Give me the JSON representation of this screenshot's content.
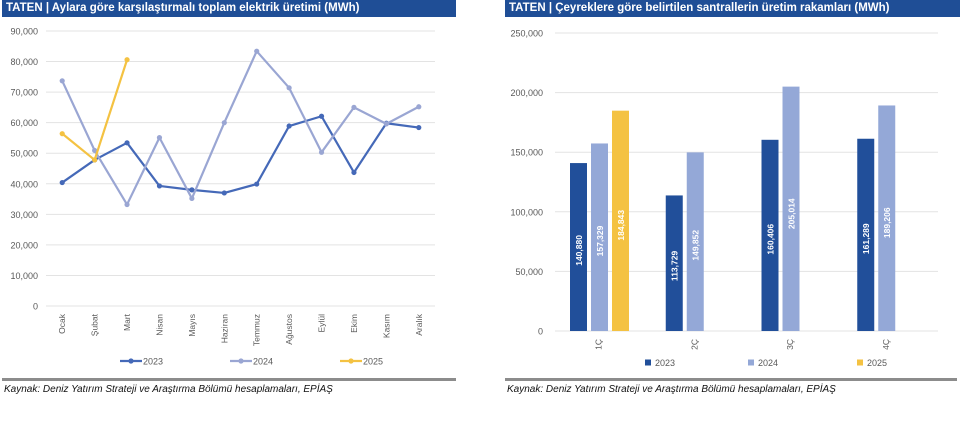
{
  "chart_data": [
    {
      "type": "line",
      "title": "TATEN | Aylara göre karşılaştırmalı toplam elektrik üretimi (MWh)",
      "xlabel": "",
      "ylabel": "",
      "categories": [
        "Ocak",
        "Şubat",
        "Mart",
        "Nisan",
        "Mayıs",
        "Haziran",
        "Temmuz",
        "Ağustos",
        "Eylül",
        "Ekim",
        "Kasım",
        "Aralık"
      ],
      "series": [
        {
          "name": "2023",
          "color": "#4569b8",
          "values": [
            40400,
            47800,
            53400,
            39300,
            38000,
            37000,
            39900,
            58900,
            62100,
            43700,
            59800,
            58400
          ]
        },
        {
          "name": "2024",
          "color": "#9aa6d3",
          "values": [
            73700,
            50900,
            33200,
            55100,
            35200,
            60000,
            83400,
            71400,
            50300,
            65000,
            59600,
            65200
          ]
        },
        {
          "name": "2025",
          "color": "#f4c242",
          "values": [
            56400,
            47800,
            80600
          ]
        }
      ],
      "ylim": [
        0,
        90000
      ],
      "yticks": [
        0,
        10000,
        20000,
        30000,
        40000,
        50000,
        60000,
        70000,
        80000,
        90000
      ],
      "ytick_labels": [
        "0",
        "10,000",
        "20,000",
        "30,000",
        "40,000",
        "50,000",
        "60,000",
        "70,000",
        "80,000",
        "90,000"
      ],
      "grid": true,
      "legend": "bottom"
    },
    {
      "type": "bar",
      "title": "TATEN | Çeyreklere göre belirtilen santrallerin üretim rakamları (MWh)",
      "xlabel": "",
      "ylabel": "",
      "categories": [
        "1Ç",
        "2Ç",
        "3Ç",
        "4Ç"
      ],
      "series": [
        {
          "name": "2023",
          "color": "#214f9a",
          "values": [
            140880,
            113729,
            160406,
            161289
          ],
          "labels": [
            "140,880",
            "113,729",
            "160,406",
            "161,289"
          ]
        },
        {
          "name": "2024",
          "color": "#94a8d7",
          "values": [
            157329,
            149852,
            205014,
            189206
          ],
          "labels": [
            "157,329",
            "149,852",
            "205,014",
            "189,206"
          ]
        },
        {
          "name": "2025",
          "color": "#f4c242",
          "values": [
            184843,
            null,
            null,
            null
          ],
          "labels": [
            "184,843",
            "",
            "",
            ""
          ]
        }
      ],
      "ylim": [
        0,
        250000
      ],
      "yticks": [
        0,
        50000,
        100000,
        150000,
        200000,
        250000
      ],
      "ytick_labels": [
        "0",
        "50,000",
        "100,000",
        "150,000",
        "200,000",
        "250,000"
      ],
      "grid": true,
      "legend": "bottom"
    }
  ],
  "left": {
    "title": "TATEN | Aylara göre karşılaştırmalı toplam elektrik üretimi (MWh)",
    "source": "Kaynak: Deniz Yatırım Strateji ve Araştırma Bölümü hesaplamaları, EPİAŞ"
  },
  "right": {
    "title": "TATEN | Çeyreklere göre belirtilen santrallerin üretim rakamları (MWh)",
    "source": "Kaynak: Deniz Yatırım Strateji ve Araştırma Bölümü hesaplamaları, EPİAŞ"
  }
}
